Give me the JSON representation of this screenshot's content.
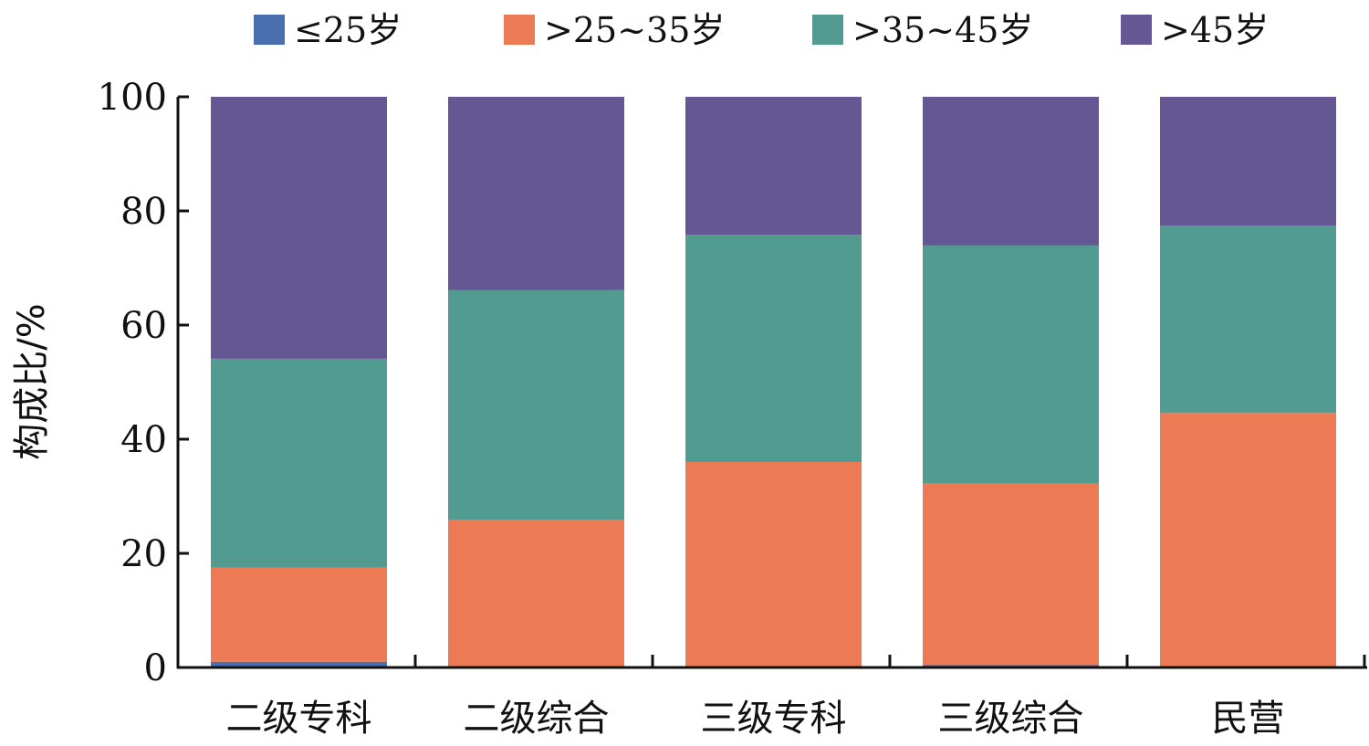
{
  "chart_data": {
    "type": "bar",
    "stacked": true,
    "categories": [
      "二级专科",
      "二级综合",
      "三级专科",
      "三级综合",
      "民营"
    ],
    "series": [
      {
        "name": "≤25岁",
        "color": "#4A6FB0",
        "values": [
          1.0,
          0.0,
          0.0,
          0.4,
          0.0
        ]
      },
      {
        "name": ">25~35岁",
        "color": "#EC7A55",
        "values": [
          16.5,
          25.8,
          36.0,
          31.8,
          44.6
        ]
      },
      {
        "name": ">35~45岁",
        "color": "#519B90",
        "values": [
          36.6,
          40.3,
          39.8,
          41.8,
          32.8
        ]
      },
      {
        "name": ">45岁",
        "color": "#655694",
        "values": [
          45.9,
          33.9,
          24.2,
          26.0,
          22.6
        ]
      }
    ],
    "ylabel": "构成比/%",
    "xlabel": "",
    "ylim": [
      0,
      100
    ],
    "yticks": [
      0,
      20,
      40,
      60,
      80,
      100
    ],
    "legend_position": "top",
    "grid": false
  }
}
